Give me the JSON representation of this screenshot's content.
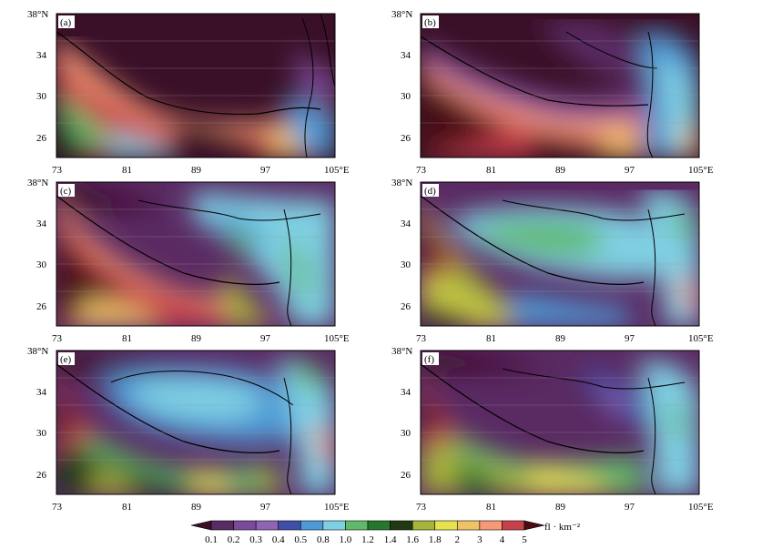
{
  "figure": {
    "axes": {
      "x_ticks": [
        "73",
        "81",
        "89",
        "97",
        "105°E"
      ],
      "y_ticks": [
        "38°N",
        "34",
        "30",
        "26"
      ]
    },
    "panels": [
      {
        "label": "(a)"
      },
      {
        "label": "(b)"
      },
      {
        "label": "(c)"
      },
      {
        "label": "(d)"
      },
      {
        "label": "(e)"
      },
      {
        "label": "(f)"
      }
    ],
    "colorbar": {
      "levels": [
        "0.1",
        "0.2",
        "0.3",
        "0.4",
        "0.5",
        "0.8",
        "1.0",
        "1.2",
        "1.4",
        "1.6",
        "1.8",
        "2",
        "3",
        "4",
        "5"
      ],
      "colors": [
        "#3a1028",
        "#5a2a63",
        "#7b4a9a",
        "#8f64b3",
        "#3f4fa8",
        "#4f9ad6",
        "#7fd0e3",
        "#5fb96a",
        "#27762f",
        "#1f3a12",
        "#a7b33b",
        "#e6e351",
        "#f0c267",
        "#f59a76",
        "#c7414c",
        "#4a0d14"
      ],
      "unit": "fl · km⁻²"
    }
  }
}
